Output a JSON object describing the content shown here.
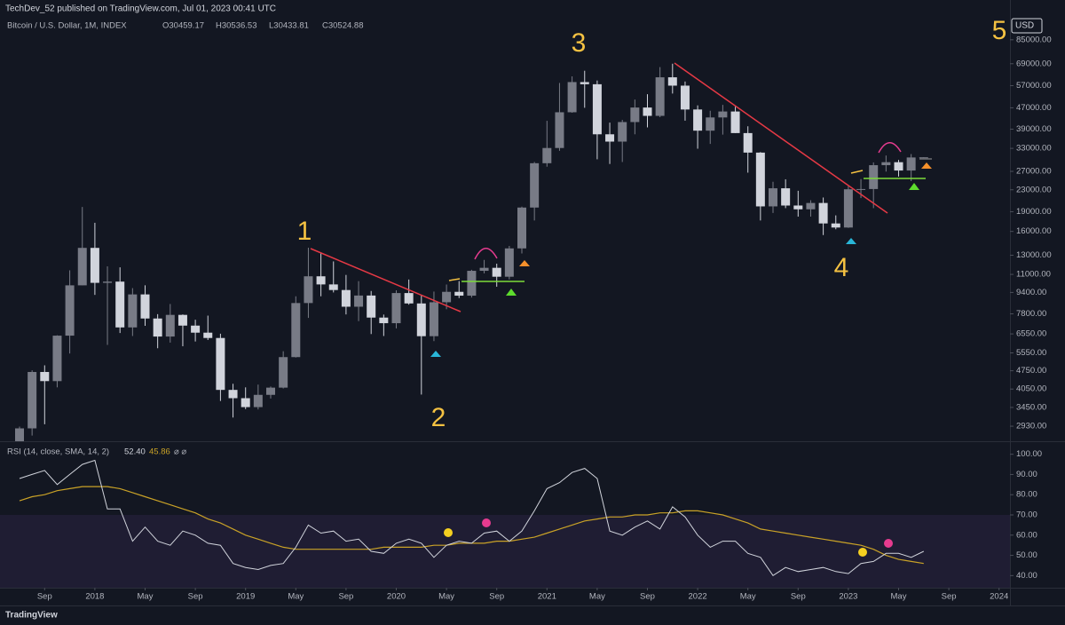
{
  "header": {
    "publisher": "TechDev_52 published on TradingView.com, Jul 01, 2023 00:41 UTC",
    "brand": "TradingView"
  },
  "chart_data": [
    {
      "type": "candlestick",
      "title": "Bitcoin / U.S. Dollar, 1M, INDEX",
      "legend_values": [
        "O30459.17",
        "H30536.53",
        "L30433.81",
        "C30524.88"
      ],
      "currency": "USD",
      "annotations": [
        "1",
        "2",
        "3",
        "4",
        "5"
      ],
      "log_scale": true,
      "up_color": "#787b86",
      "down_color": "#d1d4dc",
      "x": [
        "2017-07",
        "2017-08",
        "2017-09",
        "2017-10",
        "2017-11",
        "2017-12",
        "2018-01",
        "2018-02",
        "2018-03",
        "2018-04",
        "2018-05",
        "2018-06",
        "2018-07",
        "2018-08",
        "2018-09",
        "2018-10",
        "2018-11",
        "2018-12",
        "2019-01",
        "2019-02",
        "2019-03",
        "2019-04",
        "2019-05",
        "2019-06",
        "2019-07",
        "2019-08",
        "2019-09",
        "2019-10",
        "2019-11",
        "2019-12",
        "2020-01",
        "2020-02",
        "2020-03",
        "2020-04",
        "2020-05",
        "2020-06",
        "2020-07",
        "2020-08",
        "2020-09",
        "2020-10",
        "2020-11",
        "2020-12",
        "2021-01",
        "2021-02",
        "2021-03",
        "2021-04",
        "2021-05",
        "2021-06",
        "2021-07",
        "2021-08",
        "2021-09",
        "2021-10",
        "2021-11",
        "2021-12",
        "2022-01",
        "2022-02",
        "2022-03",
        "2022-04",
        "2022-05",
        "2022-06",
        "2022-07",
        "2022-08",
        "2022-09",
        "2022-10",
        "2022-11",
        "2022-12",
        "2023-01",
        "2023-02",
        "2023-03",
        "2023-04",
        "2023-05",
        "2023-06",
        "2023-07"
      ],
      "open": [
        2480,
        2875,
        4700,
        4340,
        6450,
        10000,
        13860,
        10220,
        10330,
        6930,
        9240,
        7490,
        6400,
        7730,
        7040,
        6620,
        6320,
        4020,
        3740,
        3460,
        3850,
        4100,
        5350,
        8570,
        10820,
        10080,
        9600,
        8300,
        9150,
        7550,
        7190,
        9350,
        8540,
        6420,
        8630,
        9450,
        9140,
        11350,
        11650,
        10780,
        13800,
        19700,
        28990,
        33100,
        45200,
        58800,
        57700,
        37300,
        35000,
        41500,
        47100,
        43800,
        61300,
        57000,
        46300,
        38500,
        43200,
        45500,
        37700,
        31800,
        19900,
        23300,
        20050,
        19400,
        20500,
        17150,
        16550,
        23100,
        23150,
        28500,
        29250,
        27200,
        30459.17
      ],
      "high": [
        2920,
        4770,
        4980,
        6470,
        11400,
        19800,
        17250,
        11800,
        11700,
        9760,
        10000,
        7780,
        8500,
        7760,
        7410,
        7680,
        6560,
        4240,
        4110,
        4210,
        4140,
        5630,
        9090,
        13880,
        13200,
        12320,
        10950,
        10370,
        9520,
        7750,
        9580,
        10520,
        9190,
        9470,
        10070,
        10380,
        11450,
        12480,
        12080,
        14100,
        19860,
        29300,
        41950,
        58350,
        61800,
        64900,
        59600,
        41300,
        42300,
        50500,
        52900,
        67000,
        69000,
        59100,
        47990,
        45800,
        48200,
        47450,
        40000,
        31950,
        24650,
        25200,
        22800,
        21000,
        21500,
        18400,
        23950,
        25250,
        29200,
        31000,
        29850,
        31400,
        30536.53
      ],
      "low": [
        1840,
        2700,
        2980,
        4110,
        5520,
        10000,
        9200,
        5950,
        6600,
        6430,
        7030,
        5780,
        6070,
        5880,
        6130,
        6210,
        3650,
        3160,
        3400,
        3390,
        3730,
        4070,
        5330,
        7530,
        9090,
        9400,
        7760,
        7320,
        6540,
        6430,
        6870,
        8450,
        3860,
        6150,
        8120,
        8950,
        8990,
        11100,
        9880,
        10530,
        13200,
        17600,
        28130,
        32300,
        45000,
        47000,
        30000,
        28800,
        29300,
        37300,
        39600,
        43300,
        53200,
        42000,
        32900,
        34300,
        37200,
        37700,
        26700,
        17600,
        18800,
        19600,
        18200,
        18200,
        15500,
        16300,
        16500,
        21400,
        19600,
        26950,
        25800,
        24800,
        30433.81
      ],
      "close": [
        2875,
        4700,
        4340,
        6450,
        10000,
        13860,
        10220,
        10330,
        6930,
        9240,
        7490,
        6400,
        7730,
        7040,
        6620,
        6320,
        4020,
        3740,
        3460,
        3850,
        4100,
        5350,
        8570,
        10820,
        10080,
        9600,
        8300,
        9150,
        7550,
        7190,
        9350,
        8540,
        6420,
        8630,
        9450,
        9140,
        11350,
        11650,
        10780,
        13800,
        19700,
        28990,
        33100,
        45200,
        58800,
        57700,
        37300,
        35000,
        41500,
        47100,
        43800,
        61300,
        57000,
        46300,
        38500,
        43200,
        45500,
        37700,
        31800,
        19900,
        23300,
        20050,
        19400,
        20500,
        17150,
        16550,
        23100,
        23150,
        28500,
        29250,
        27200,
        30480,
        30524.88
      ],
      "ylim": [
        2570,
        103000
      ],
      "yticks": [
        {
          "value": 85000,
          "label": "85000.00"
        },
        {
          "value": 69000,
          "label": "69000.00"
        },
        {
          "value": 57000,
          "label": "57000.00"
        },
        {
          "value": 47000,
          "label": "47000.00"
        },
        {
          "value": 39000,
          "label": "39000.00"
        },
        {
          "value": 33000,
          "label": "33000.00"
        },
        {
          "value": 27000,
          "label": "27000.00"
        },
        {
          "value": 23000,
          "label": "23000.00"
        },
        {
          "value": 19000,
          "label": "19000.00"
        },
        {
          "value": 16000,
          "label": "16000.00"
        },
        {
          "value": 13000,
          "label": "13000.00"
        },
        {
          "value": 11000,
          "label": "11000.00"
        },
        {
          "value": 9400,
          "label": "9400.00"
        },
        {
          "value": 7800,
          "label": "7800.00"
        },
        {
          "value": 6550,
          "label": "6550.00"
        },
        {
          "value": 5550,
          "label": "5550.00"
        },
        {
          "value": 4750,
          "label": "4750.00"
        },
        {
          "value": 4050,
          "label": "4050.00"
        },
        {
          "value": 3450,
          "label": "3450.00"
        },
        {
          "value": 2930,
          "label": "2930.00"
        }
      ]
    },
    {
      "type": "line",
      "title": "RSI (14, close, SMA, 14, 2)",
      "legend_values": [
        "52.40",
        "45.86"
      ],
      "legend_extra": "⌀ ⌀",
      "x": [
        "2017-07",
        "2017-08",
        "2017-09",
        "2017-10",
        "2017-11",
        "2017-12",
        "2018-01",
        "2018-02",
        "2018-03",
        "2018-04",
        "2018-05",
        "2018-06",
        "2018-07",
        "2018-08",
        "2018-09",
        "2018-10",
        "2018-11",
        "2018-12",
        "2019-01",
        "2019-02",
        "2019-03",
        "2019-04",
        "2019-05",
        "2019-06",
        "2019-07",
        "2019-08",
        "2019-09",
        "2019-10",
        "2019-11",
        "2019-12",
        "2020-01",
        "2020-02",
        "2020-03",
        "2020-04",
        "2020-05",
        "2020-06",
        "2020-07",
        "2020-08",
        "2020-09",
        "2020-10",
        "2020-11",
        "2020-12",
        "2021-01",
        "2021-02",
        "2021-03",
        "2021-04",
        "2021-05",
        "2021-06",
        "2021-07",
        "2021-08",
        "2021-09",
        "2021-10",
        "2021-11",
        "2021-12",
        "2022-01",
        "2022-02",
        "2022-03",
        "2022-04",
        "2022-05",
        "2022-06",
        "2022-07",
        "2022-08",
        "2022-09",
        "2022-10",
        "2022-11",
        "2022-12",
        "2023-01",
        "2023-02",
        "2023-03",
        "2023-04",
        "2023-05",
        "2023-06",
        "2023-07"
      ],
      "series": [
        {
          "color": "#d1d4dc",
          "values": [
            88,
            90,
            92,
            85,
            90,
            95,
            97,
            73,
            73,
            57,
            64,
            57,
            55,
            62,
            60,
            56,
            55,
            46,
            44,
            43,
            45,
            46,
            54,
            65,
            61,
            62,
            57,
            58,
            52,
            51,
            56,
            58,
            56,
            49,
            55,
            57,
            56,
            61,
            62,
            57,
            62,
            72,
            83,
            86,
            91,
            93,
            88,
            62,
            60,
            64,
            67,
            63,
            74,
            69,
            60,
            54,
            57,
            57,
            51,
            49,
            40,
            44,
            42,
            43,
            44,
            42,
            41,
            46,
            47,
            51,
            51,
            49,
            52
          ]
        },
        {
          "color": "#c9a227",
          "values": [
            77,
            79,
            80,
            82,
            83,
            84,
            84,
            84,
            83,
            81,
            79,
            77,
            75,
            73,
            71,
            68,
            66,
            63,
            60,
            58,
            56,
            54,
            53,
            53,
            53,
            53,
            53,
            53,
            53,
            54,
            54,
            54,
            54,
            55,
            55,
            56,
            56,
            56,
            57,
            57,
            58,
            59,
            61,
            63,
            65,
            67,
            68,
            69,
            69,
            70,
            70,
            71,
            71,
            72,
            72,
            71,
            70,
            68,
            66,
            63,
            62,
            61,
            60,
            59,
            58,
            57,
            56,
            55,
            53,
            50,
            48,
            47,
            46
          ]
        }
      ],
      "ylim": [
        34,
        106
      ],
      "yticks": [
        {
          "value": 100,
          "label": "100.00"
        },
        {
          "value": 90,
          "label": "90.00"
        },
        {
          "value": 80,
          "label": "80.00"
        },
        {
          "value": 70,
          "label": "70.00"
        },
        {
          "value": 60,
          "label": "60.00"
        },
        {
          "value": 50,
          "label": "50.00"
        },
        {
          "value": 40,
          "label": "40.00"
        }
      ],
      "xticks": [
        {
          "value": "2017-09",
          "label": "Sep"
        },
        {
          "value": "2018-01",
          "label": "2018"
        },
        {
          "value": "2018-05",
          "label": "May"
        },
        {
          "value": "2018-09",
          "label": "Sep"
        },
        {
          "value": "2019-01",
          "label": "2019"
        },
        {
          "value": "2019-05",
          "label": "May"
        },
        {
          "value": "2019-09",
          "label": "Sep"
        },
        {
          "value": "2020-01",
          "label": "2020"
        },
        {
          "value": "2020-05",
          "label": "May"
        },
        {
          "value": "2020-09",
          "label": "Sep"
        },
        {
          "value": "2021-01",
          "label": "2021"
        },
        {
          "value": "2021-05",
          "label": "May"
        },
        {
          "value": "2021-09",
          "label": "Sep"
        },
        {
          "value": "2022-01",
          "label": "2022"
        },
        {
          "value": "2022-05",
          "label": "May"
        },
        {
          "value": "2022-09",
          "label": "Sep"
        },
        {
          "value": "2023-01",
          "label": "2023"
        },
        {
          "value": "2023-05",
          "label": "May"
        },
        {
          "value": "2023-09",
          "label": "Sep"
        },
        {
          "value": "2024-01",
          "label": "2024"
        }
      ]
    }
  ]
}
